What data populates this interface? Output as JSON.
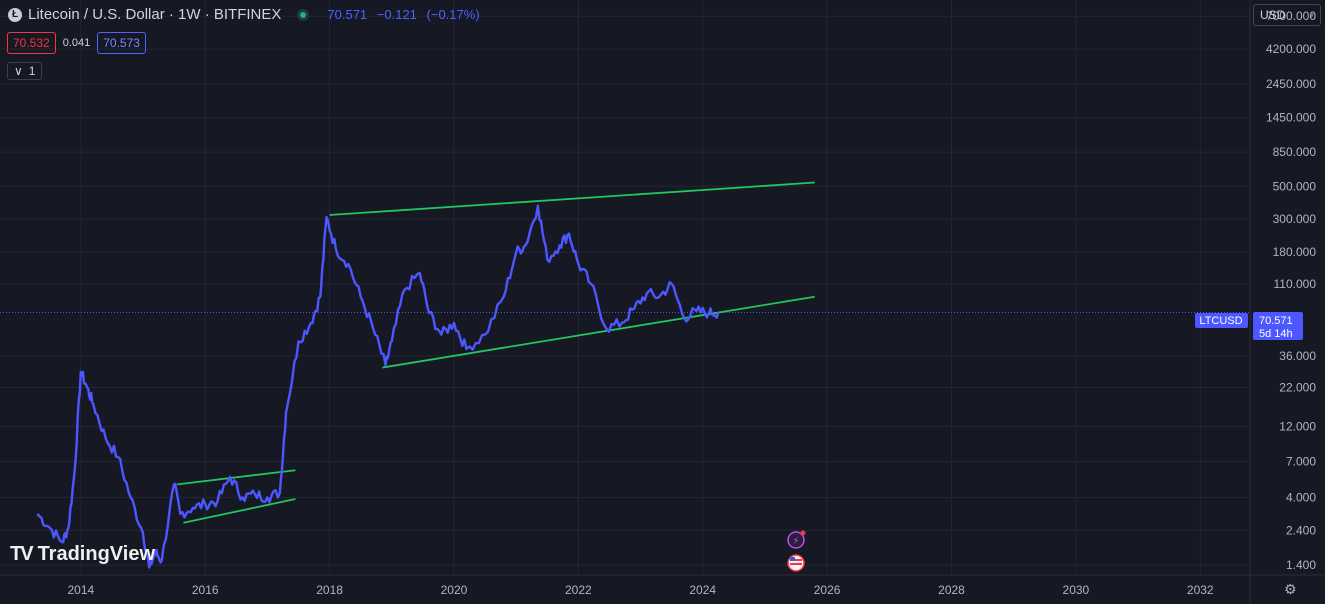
{
  "header": {
    "coin_icon": "litecoin-icon",
    "symbol_title": "Litecoin / U.S. Dollar · 1W · BITFINEX",
    "last": "70.571",
    "change": "−0.121",
    "change_pct": "(−0.17%)"
  },
  "prices": {
    "bid": "70.532",
    "spread": "0.041",
    "ask": "70.573"
  },
  "indicator_toggle": {
    "icon": "chevron-down-icon",
    "count": "1"
  },
  "currency": "USD",
  "logo_text": "TradingView",
  "price_label": {
    "symbol": "LTCUSD",
    "price": "70.571",
    "countdown": "5d 14h"
  },
  "colors": {
    "background": "#161824",
    "price_line": "#4d57ff",
    "trend_lines": "#22c55e",
    "grid": "#232634"
  },
  "chart_data": {
    "type": "line",
    "title": "Litecoin / U.S. Dollar · 1W · BITFINEX",
    "scale": "log",
    "ylim": [
      1.2,
      9000
    ],
    "xlim": [
      2012.7,
      2032.8
    ],
    "x_ticks": [
      2014,
      2016,
      2018,
      2020,
      2022,
      2024,
      2026,
      2028,
      2030,
      2032
    ],
    "x_tick_labels": [
      "2014",
      "2016",
      "2018",
      "2020",
      "2022",
      "2024",
      "2026",
      "2028",
      "2030",
      "2032"
    ],
    "y_ticks": [
      1.4,
      2.4,
      4.0,
      7.0,
      12.0,
      22.0,
      36.0,
      110.0,
      180.0,
      300.0,
      500.0,
      850.0,
      1450.0,
      2450.0,
      4200.0,
      7000.0
    ],
    "y_tick_labels": [
      "1.400",
      "2.400",
      "4.000",
      "7.000",
      "12.000",
      "22.000",
      "36.000",
      "110.000",
      "180.000",
      "300.000",
      "500.000",
      "850.000",
      "1450.000",
      "2450.000",
      "4200.000",
      "7000.000"
    ],
    "grid": true,
    "series": [
      {
        "x": [
          2013.3,
          2013.5,
          2013.7,
          2013.8,
          2013.9,
          2014.0,
          2014.1,
          2014.2,
          2014.4,
          2014.6,
          2014.8,
          2015.0,
          2015.1,
          2015.2,
          2015.3,
          2015.5,
          2015.6,
          2015.8,
          2016.0,
          2016.2,
          2016.4,
          2016.6,
          2016.8,
          2017.0,
          2017.2,
          2017.3,
          2017.5,
          2017.7,
          2017.85,
          2017.95,
          2018.1,
          2018.3,
          2018.5,
          2018.7,
          2018.9,
          2019.0,
          2019.2,
          2019.45,
          2019.6,
          2019.8,
          2020.0,
          2020.2,
          2020.5,
          2020.8,
          2021.0,
          2021.15,
          2021.35,
          2021.5,
          2021.7,
          2021.85,
          2022.0,
          2022.2,
          2022.45,
          2022.7,
          2022.9,
          2023.1,
          2023.3,
          2023.5,
          2023.7,
          2023.9,
          2024.1,
          2024.25
        ],
        "y": [
          3.1,
          2.5,
          2.0,
          2.5,
          6.0,
          28.0,
          22.0,
          17.0,
          10.0,
          7.5,
          4.0,
          2.3,
          1.35,
          1.7,
          1.5,
          4.9,
          3.1,
          3.4,
          3.6,
          3.8,
          5.5,
          4.0,
          4.2,
          4.0,
          4.3,
          15.0,
          45.0,
          60.0,
          90.0,
          310.0,
          190.0,
          150.0,
          90.0,
          55.0,
          31.0,
          45.0,
          100.0,
          130.0,
          70.0,
          50.0,
          60.0,
          40.0,
          50.0,
          90.0,
          180.0,
          200.0,
          370.0,
          160.0,
          200.0,
          240.0,
          150.0,
          110.0,
          55.0,
          60.0,
          75.0,
          95.0,
          90.0,
          110.0,
          65.0,
          72.0,
          70.0,
          70.571
        ]
      }
    ],
    "trend_lines": [
      {
        "x": [
          2015.55,
          2017.45
        ],
        "y": [
          4.9,
          6.1
        ]
      },
      {
        "x": [
          2015.65,
          2017.45
        ],
        "y": [
          2.7,
          3.9
        ]
      },
      {
        "x": [
          2018.0,
          2025.8
        ],
        "y": [
          320.0,
          530.0
        ]
      },
      {
        "x": [
          2018.85,
          2025.8
        ],
        "y": [
          30.0,
          90.0
        ]
      }
    ],
    "last_price": 70.571
  }
}
